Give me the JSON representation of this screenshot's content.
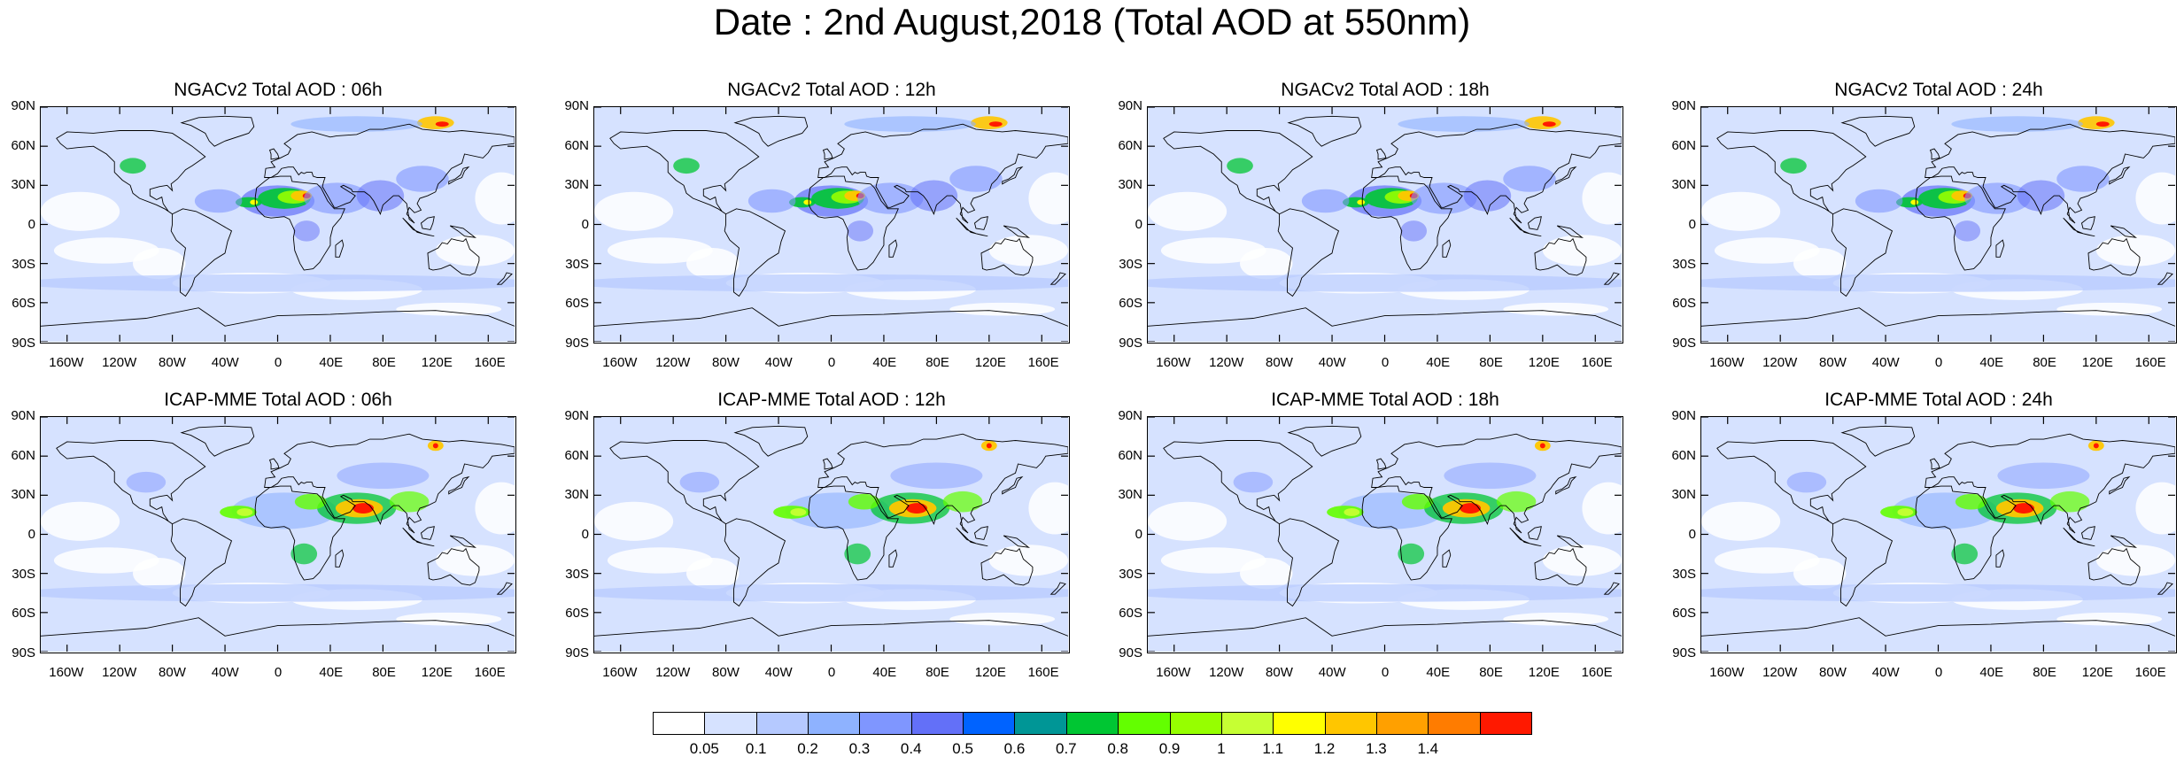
{
  "title": "Date : 2nd August,2018 (Total AOD at 550nm)",
  "panels": [
    {
      "title": "NGACv2 Total AOD : 06h",
      "model": "ngac"
    },
    {
      "title": "NGACv2 Total AOD : 12h",
      "model": "ngac"
    },
    {
      "title": "NGACv2 Total AOD : 18h",
      "model": "ngac"
    },
    {
      "title": "NGACv2 Total AOD : 24h",
      "model": "ngac"
    },
    {
      "title": "ICAP-MME Total AOD : 06h",
      "model": "icap"
    },
    {
      "title": "ICAP-MME Total AOD : 12h",
      "model": "icap"
    },
    {
      "title": "ICAP-MME Total AOD : 18h",
      "model": "icap"
    },
    {
      "title": "ICAP-MME Total AOD : 24h",
      "model": "icap"
    }
  ],
  "lat_labels": [
    "90N",
    "60N",
    "30N",
    "0",
    "30S",
    "60S",
    "90S"
  ],
  "lon_labels": [
    "160W",
    "120W",
    "80W",
    "40W",
    "0",
    "40E",
    "80E",
    "120E",
    "160E"
  ],
  "colorbar": {
    "labels": [
      "0.05",
      "0.1",
      "0.2",
      "0.3",
      "0.4",
      "0.5",
      "0.6",
      "0.7",
      "0.8",
      "0.9",
      "1",
      "1.1",
      "1.2",
      "1.3",
      "1.4"
    ],
    "colors": [
      "#ffffff",
      "#d6e2ff",
      "#b5c9ff",
      "#8eb2ff",
      "#7f96ff",
      "#6370f8",
      "#0063ff",
      "#009696",
      "#00c633",
      "#63ff00",
      "#96ff00",
      "#c6ff33",
      "#ffff00",
      "#ffc600",
      "#ffa000",
      "#ff7c00",
      "#ff1900"
    ]
  }
}
